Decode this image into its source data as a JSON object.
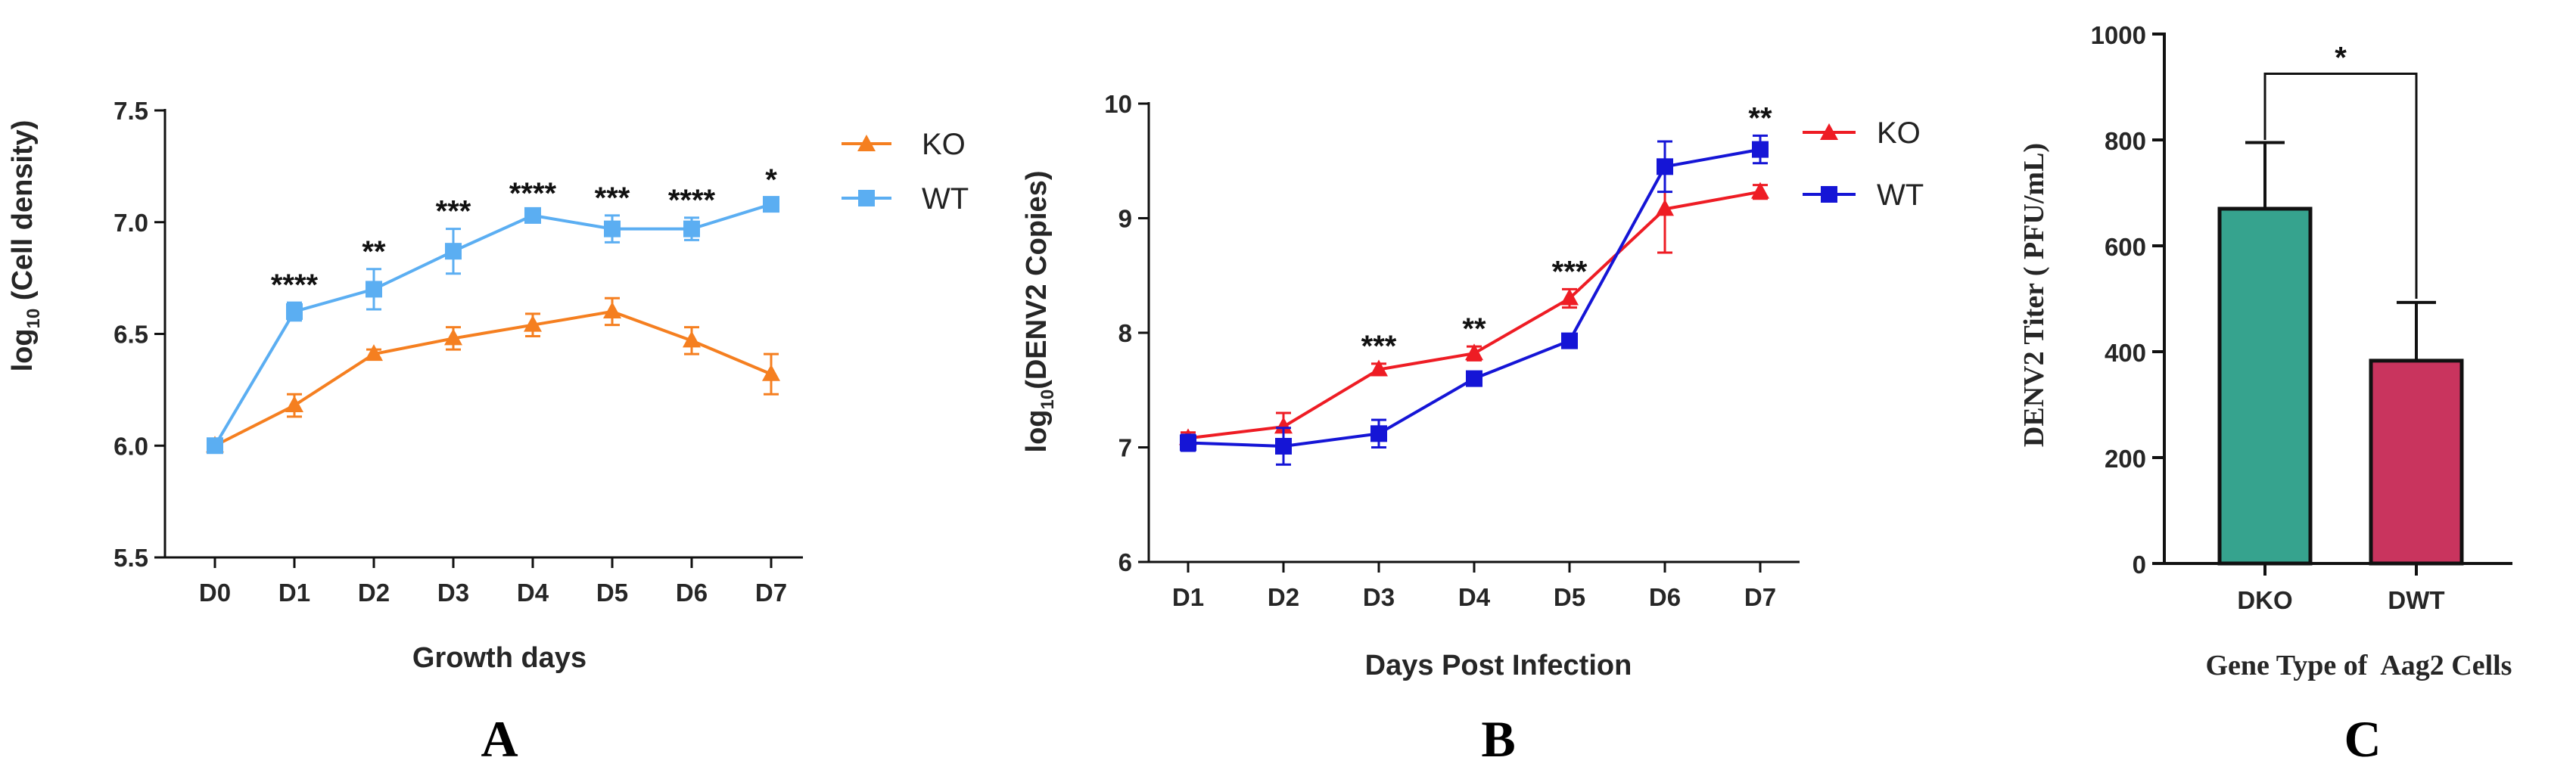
{
  "panels": {
    "A": {
      "letter": "A"
    },
    "B": {
      "letter": "B"
    },
    "C": {
      "letter": "C"
    }
  },
  "colors": {
    "ko_a": "#F57F20",
    "wt_a": "#5BAEF2",
    "ko_b": "#EE1C24",
    "wt_b": "#1515D6",
    "dko_bar": "#36A38E",
    "dwt_bar": "#C9345E",
    "axis": "#111111"
  },
  "chart_data": [
    {
      "id": "A",
      "type": "line",
      "title": "",
      "xlabel": "Growth days",
      "ylabel_prefix": "log",
      "ylabel_sub": "10",
      "ylabel_rest": " (Cell density)",
      "categories": [
        "D0",
        "D1",
        "D2",
        "D3",
        "D4",
        "D5",
        "D6",
        "D7"
      ],
      "ylim": [
        5.5,
        7.5
      ],
      "yticks": [
        "5.5",
        "6.0",
        "6.5",
        "7.0",
        "7.5"
      ],
      "legend_position": "top-right",
      "series": [
        {
          "name": "KO",
          "marker": "triangle",
          "values": [
            6.0,
            6.18,
            6.41,
            6.48,
            6.54,
            6.6,
            6.47,
            6.32
          ],
          "errors": [
            0.01,
            0.05,
            0.02,
            0.05,
            0.05,
            0.06,
            0.06,
            0.09
          ]
        },
        {
          "name": "WT",
          "marker": "square",
          "values": [
            6.0,
            6.6,
            6.7,
            6.87,
            7.03,
            6.97,
            6.97,
            7.08
          ],
          "errors": [
            0.01,
            0.04,
            0.09,
            0.1,
            0.02,
            0.06,
            0.05,
            0.03
          ]
        }
      ],
      "significance": [
        "",
        "****",
        "**",
        "***",
        "****",
        "***",
        "****",
        "*"
      ]
    },
    {
      "id": "B",
      "type": "line",
      "title": "",
      "xlabel": "Days Post Infection",
      "ylabel_prefix": "log",
      "ylabel_sub": "10",
      "ylabel_rest": "(DENV2 Copies)",
      "categories": [
        "D1",
        "D2",
        "D3",
        "D4",
        "D5",
        "D6",
        "D7"
      ],
      "ylim": [
        6,
        10
      ],
      "yticks": [
        "6",
        "7",
        "8",
        "9",
        "10"
      ],
      "legend_position": "top-right",
      "series": [
        {
          "name": "KO",
          "marker": "triangle",
          "values": [
            7.08,
            7.18,
            7.68,
            7.82,
            8.3,
            9.08,
            9.23
          ],
          "errors": [
            0.05,
            0.12,
            0.05,
            0.06,
            0.08,
            0.38,
            0.06
          ]
        },
        {
          "name": "WT",
          "marker": "square",
          "values": [
            7.04,
            7.01,
            7.12,
            7.6,
            7.93,
            9.45,
            9.6
          ],
          "errors": [
            0.07,
            0.16,
            0.12,
            0.05,
            0.04,
            0.22,
            0.12
          ]
        }
      ],
      "significance": [
        "",
        "",
        "***",
        "**",
        "***",
        "",
        "**"
      ]
    },
    {
      "id": "C",
      "type": "bar",
      "title": "",
      "xlabel": "Gene Type of  Aag2 Cells",
      "ylabel": "DENV2 Titer ( PFU/mL)",
      "categories": [
        "DKO",
        "DWT"
      ],
      "values": [
        670,
        383
      ],
      "errors": [
        125,
        110
      ],
      "ylim": [
        0,
        1000
      ],
      "yticks": [
        "0",
        "200",
        "400",
        "600",
        "800",
        "1000"
      ],
      "significance": "*"
    }
  ]
}
